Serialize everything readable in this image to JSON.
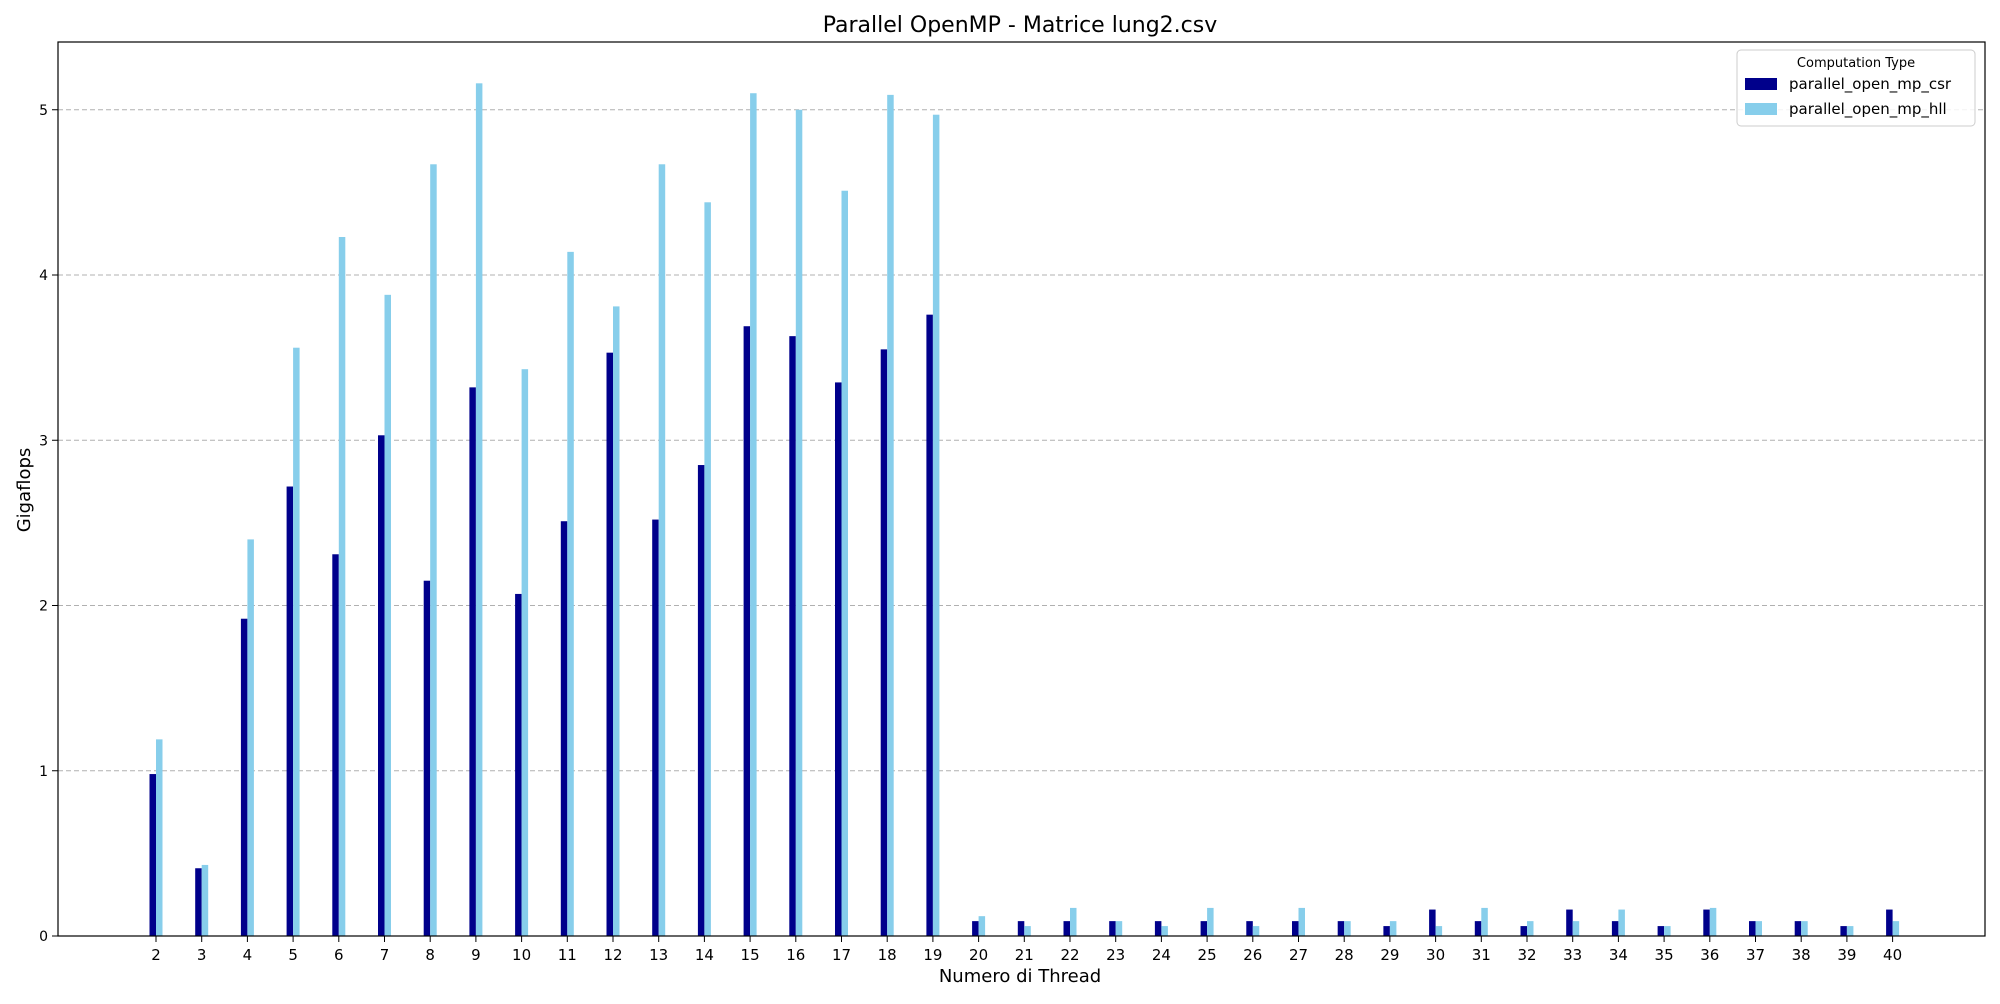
{
  "chart_data": {
    "type": "bar",
    "title": "Parallel OpenMP - Matrice lung2.csv",
    "xlabel": "Numero di Thread",
    "ylabel": "Gigaflops",
    "ylim": [
      0,
      5.41
    ],
    "yticks": [
      0,
      1,
      2,
      3,
      4,
      5
    ],
    "grid": "y-dashed",
    "legend": {
      "title": "Computation Type",
      "placement": "top-right"
    },
    "categories": [
      "2",
      "3",
      "4",
      "5",
      "6",
      "7",
      "8",
      "9",
      "10",
      "11",
      "12",
      "13",
      "14",
      "15",
      "16",
      "17",
      "18",
      "19",
      "20",
      "21",
      "22",
      "23",
      "24",
      "25",
      "26",
      "27",
      "28",
      "29",
      "30",
      "31",
      "32",
      "33",
      "34",
      "35",
      "36",
      "37",
      "38",
      "39",
      "40"
    ],
    "series": [
      {
        "name": "parallel_open_mp_csr",
        "color": "#00008b",
        "values": [
          0.98,
          0.41,
          1.92,
          2.72,
          2.31,
          3.03,
          2.15,
          3.32,
          2.07,
          2.51,
          3.53,
          2.52,
          2.85,
          3.69,
          3.63,
          3.35,
          3.55,
          3.76,
          0.09,
          0.09,
          0.09,
          0.09,
          0.09,
          0.09,
          0.09,
          0.09,
          0.09,
          0.06,
          0.16,
          0.09,
          0.06,
          0.16,
          0.09,
          0.06,
          0.16,
          0.09,
          0.09,
          0.06,
          0.16
        ]
      },
      {
        "name": "parallel_open_mp_hll",
        "color": "#87ceeb",
        "values": [
          1.19,
          0.43,
          2.4,
          3.56,
          4.23,
          3.88,
          4.67,
          5.16,
          3.43,
          4.14,
          3.81,
          4.67,
          4.44,
          5.1,
          5.0,
          4.51,
          5.09,
          4.97,
          0.12,
          0.06,
          0.17,
          0.09,
          0.06,
          0.17,
          0.06,
          0.17,
          0.09,
          0.09,
          0.06,
          0.17,
          0.09,
          0.09,
          0.16,
          0.06,
          0.17,
          0.09,
          0.09,
          0.06,
          0.09
        ]
      }
    ]
  }
}
